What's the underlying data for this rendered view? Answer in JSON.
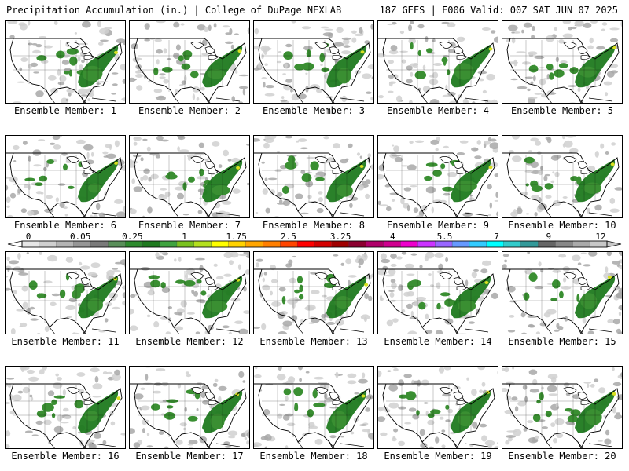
{
  "header": {
    "title": "Precipitation Accumulation (in.) | College of DuPage NEXLAB",
    "run_info": "18Z GEFS | F006 Valid: 00Z SAT JUN 07 2025"
  },
  "members": [
    {
      "label": "Ensemble Member: 1",
      "seed": 11
    },
    {
      "label": "Ensemble Member: 2",
      "seed": 23
    },
    {
      "label": "Ensemble Member: 3",
      "seed": 37
    },
    {
      "label": "Ensemble Member: 4",
      "seed": 41
    },
    {
      "label": "Ensemble Member: 5",
      "seed": 53
    },
    {
      "label": "Ensemble Member: 6",
      "seed": 67
    },
    {
      "label": "Ensemble Member: 7",
      "seed": 71
    },
    {
      "label": "Ensemble Member: 8",
      "seed": 83
    },
    {
      "label": "Ensemble Member: 9",
      "seed": 97
    },
    {
      "label": "Ensemble Member: 10",
      "seed": 101
    },
    {
      "label": "Ensemble Member: 11",
      "seed": 113
    },
    {
      "label": "Ensemble Member: 12",
      "seed": 127
    },
    {
      "label": "Ensemble Member: 13",
      "seed": 131
    },
    {
      "label": "Ensemble Member: 14",
      "seed": 149
    },
    {
      "label": "Ensemble Member: 15",
      "seed": 151
    },
    {
      "label": "Ensemble Member: 16",
      "seed": 163
    },
    {
      "label": "Ensemble Member: 17",
      "seed": 173
    },
    {
      "label": "Ensemble Member: 18",
      "seed": 181
    },
    {
      "label": "Ensemble Member: 19",
      "seed": 191
    },
    {
      "label": "Ensemble Member: 20",
      "seed": 199
    }
  ],
  "colorbar": {
    "tick_labels": [
      "0",
      "0.05",
      "0.25",
      "1",
      "1.75",
      "2.5",
      "3.25",
      "4",
      "5.5",
      "7",
      "9",
      "12"
    ],
    "colors": [
      "#e6e6e6",
      "#cfcfcf",
      "#b4b4b4",
      "#969696",
      "#7a7a7a",
      "#5a8f5a",
      "#2e8b2e",
      "#1f7a1f",
      "#3fa33f",
      "#7ac21f",
      "#b4e01f",
      "#ffff00",
      "#ffd200",
      "#ffa500",
      "#ff7f00",
      "#ff4500",
      "#ff0000",
      "#d40000",
      "#a00000",
      "#8b0030",
      "#b0006a",
      "#d0008f",
      "#ee00cc",
      "#cc33ff",
      "#9966ff",
      "#6699ff",
      "#33ccff",
      "#00ffff",
      "#33cccc",
      "#339999",
      "#666666",
      "#888888",
      "#aaaaaa",
      "#c8c8c8"
    ]
  },
  "map_colors": {
    "light": "#d0d0d0",
    "medium": "#a8a8a8",
    "green": "#3a8f32",
    "dark_green": "#1f7a1f",
    "yellow": "#d8e020"
  }
}
